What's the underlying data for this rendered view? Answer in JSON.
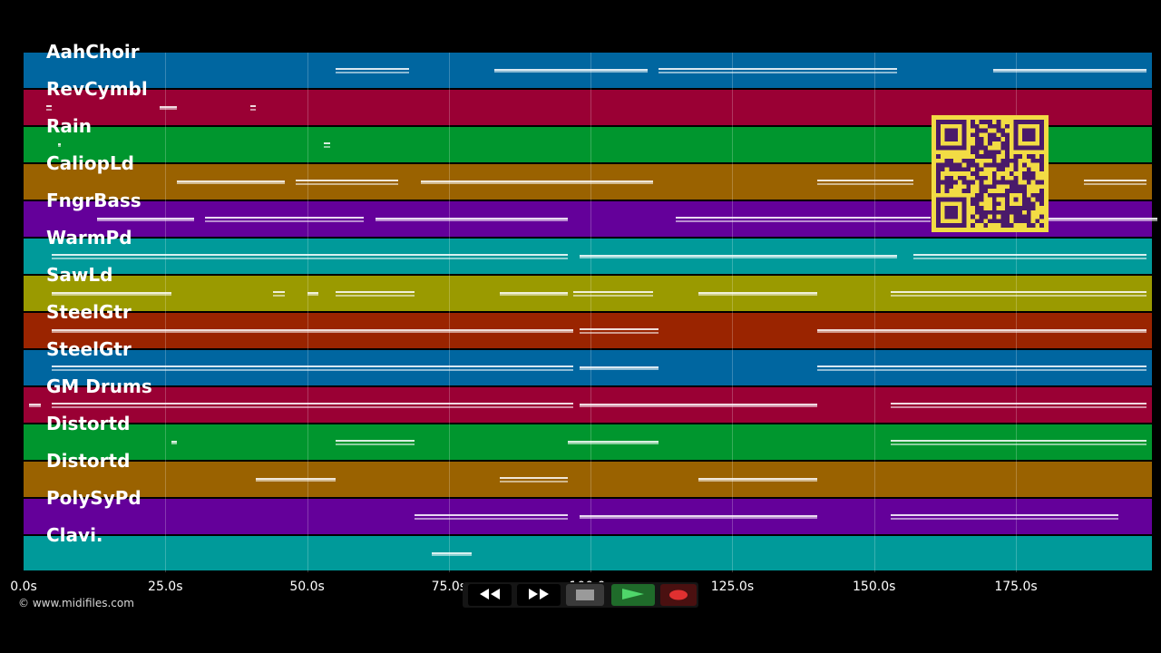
{
  "timeline": {
    "tracks": [
      {
        "name": "AahChoir",
        "color": "#0066a0"
      },
      {
        "name": "RevCymbl",
        "color": "#9a0034"
      },
      {
        "name": "Rain",
        "color": "#00962e"
      },
      {
        "name": "CaliopLd",
        "color": "#9a6200"
      },
      {
        "name": "FngrBass",
        "color": "#64009a"
      },
      {
        "name": "WarmPd",
        "color": "#009a9a"
      },
      {
        "name": "SawLd",
        "color": "#9a9a00"
      },
      {
        "name": "SteelGtr",
        "color": "#9a2400"
      },
      {
        "name": "SteelGtr",
        "color": "#0066a0"
      },
      {
        "name": "GM Drums",
        "color": "#9a0034"
      },
      {
        "name": "Distortd",
        "color": "#00962e"
      },
      {
        "name": "Distortd",
        "color": "#9a6200"
      },
      {
        "name": "PolySyPd",
        "color": "#64009a"
      },
      {
        "name": "Clavi.",
        "color": "#009a9a"
      }
    ],
    "time_ticks": [
      "0.0s",
      "25.0s",
      "50.0s",
      "75.0s",
      "100.0s",
      "125.0s",
      "150.0s",
      "175.0s"
    ],
    "tick_values": [
      0,
      25,
      50,
      75,
      100,
      125,
      150,
      175
    ],
    "duration_seconds": 200,
    "note_segments": [
      [
        0,
        55,
        68
      ],
      [
        0,
        83,
        110
      ],
      [
        0,
        112,
        154
      ],
      [
        0,
        171,
        198
      ],
      [
        1,
        4,
        5
      ],
      [
        1,
        24,
        27
      ],
      [
        1,
        40,
        41
      ],
      [
        2,
        6,
        6.5
      ],
      [
        2,
        53,
        54
      ],
      [
        3,
        27,
        46
      ],
      [
        3,
        48,
        66
      ],
      [
        3,
        70,
        111
      ],
      [
        3,
        140,
        157
      ],
      [
        3,
        167,
        178
      ],
      [
        3,
        187,
        198
      ],
      [
        4,
        13,
        30
      ],
      [
        4,
        32,
        60
      ],
      [
        4,
        62,
        96
      ],
      [
        4,
        115,
        160
      ],
      [
        4,
        165,
        200
      ],
      [
        5,
        5,
        96
      ],
      [
        5,
        98,
        154
      ],
      [
        5,
        157,
        198
      ],
      [
        6,
        5,
        26
      ],
      [
        6,
        44,
        46
      ],
      [
        6,
        50,
        52
      ],
      [
        6,
        55,
        69
      ],
      [
        6,
        84,
        96
      ],
      [
        6,
        97,
        111
      ],
      [
        6,
        119,
        140
      ],
      [
        6,
        153,
        198
      ],
      [
        7,
        5,
        97
      ],
      [
        7,
        98,
        112
      ],
      [
        7,
        140,
        198
      ],
      [
        8,
        5,
        97
      ],
      [
        8,
        98,
        112
      ],
      [
        8,
        140,
        198
      ],
      [
        9,
        1,
        3
      ],
      [
        9,
        5,
        97
      ],
      [
        9,
        98,
        140
      ],
      [
        9,
        153,
        198
      ],
      [
        10,
        26,
        27
      ],
      [
        10,
        55,
        69
      ],
      [
        10,
        96,
        112
      ],
      [
        10,
        153,
        198
      ],
      [
        11,
        41,
        55
      ],
      [
        11,
        84,
        96
      ],
      [
        11,
        119,
        140
      ],
      [
        12,
        69,
        96
      ],
      [
        12,
        98,
        140
      ],
      [
        12,
        153,
        193
      ],
      [
        13,
        72,
        79
      ]
    ],
    "copyright": "© www.midifiles.com"
  },
  "transport": {
    "rewind_icon": "rewind-icon",
    "fast_forward_icon": "fast-forward-icon",
    "stop_icon": "stop-icon",
    "play_icon": "play-icon",
    "record_icon": "record-icon"
  },
  "qr_code_icon": "qr-code-icon"
}
